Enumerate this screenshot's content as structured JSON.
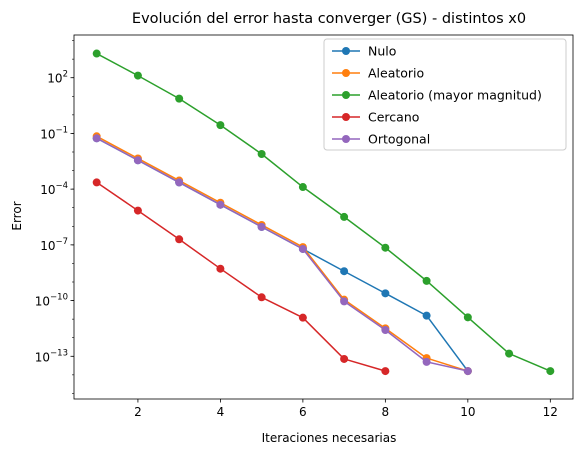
{
  "chart_data": {
    "type": "line",
    "title": "Evolución del error hasta converger (GS) - distintos x0",
    "xlabel": "Iteraciones necesarias",
    "ylabel": "Error",
    "xlim": [
      0.45,
      12.55
    ],
    "ylim_log10": [
      -15.3,
      4.3
    ],
    "yscale": "log",
    "grid": false,
    "legend_position": "top-right",
    "x_ticks": [
      2,
      4,
      6,
      8,
      10,
      12
    ],
    "y_ticks": [
      {
        "exp": 2,
        "label": "10",
        "sup": "2"
      },
      {
        "exp": -1,
        "label": "10",
        "sup": "−1"
      },
      {
        "exp": -4,
        "label": "10",
        "sup": "−4"
      },
      {
        "exp": -7,
        "label": "10",
        "sup": "−7"
      },
      {
        "exp": -10,
        "label": "10",
        "sup": "−10"
      },
      {
        "exp": -13,
        "label": "10",
        "sup": "−13"
      }
    ],
    "series": [
      {
        "name": "Nulo",
        "color": "#1f77b4",
        "x": [
          1,
          2,
          3,
          4,
          5,
          6,
          7,
          8,
          9,
          10
        ],
        "y": [
          0.055,
          0.0036,
          0.00023,
          1.45e-05,
          9.3e-07,
          6e-08,
          3.8e-09,
          2.45e-10,
          1.55e-11,
          1.6e-14
        ]
      },
      {
        "name": "Aleatorio",
        "color": "#ff7f0e",
        "x": [
          1,
          2,
          3,
          4,
          5,
          6,
          7,
          8,
          9,
          10
        ],
        "y": [
          0.07,
          0.0045,
          0.00029,
          1.85e-05,
          1.18e-06,
          7.6e-08,
          4.9e-09,
          3.1e-10,
          2e-11,
          1.6e-14
        ],
        "y_override": [
          0.07,
          0.0045,
          0.00029,
          1.85e-05,
          1.18e-06,
          7.6e-08,
          1.12e-10,
          3.2e-12,
          8e-14,
          1.6e-14
        ]
      },
      {
        "name": "Aleatorio (mayor magnitud)",
        "color": "#2ca02c",
        "x": [
          1,
          2,
          3,
          4,
          5,
          6,
          7,
          8,
          9,
          10,
          11,
          12
        ],
        "y": [
          2000,
          130,
          7.5,
          0.28,
          0.0078,
          0.00013,
          3.2e-06,
          7e-08,
          1.15e-09,
          4.2e-12,
          1.4e-13,
          1.6e-14
        ],
        "y_override": [
          2000,
          130,
          7.5,
          0.28,
          0.0078,
          0.00013,
          3.2e-06,
          7e-08,
          1.15e-09,
          1.25e-11,
          1.4e-13,
          1.6e-14
        ]
      },
      {
        "name": "Cercano",
        "color": "#d62728",
        "x": [
          1,
          2,
          3,
          4,
          5,
          6,
          7,
          8
        ],
        "y": [
          0.00023,
          7e-06,
          2e-07,
          5.2e-09,
          1.5e-10,
          1.2e-12,
          7.2e-14,
          1.6e-14
        ],
        "y_override": [
          0.00023,
          7e-06,
          2e-07,
          5.2e-09,
          1.5e-10,
          1.2e-11,
          7.2e-14,
          1.6e-14
        ]
      },
      {
        "name": "Ortogonal",
        "color": "#9467bd",
        "x": [
          1,
          2,
          3,
          4,
          5,
          6,
          7,
          8,
          9,
          10
        ],
        "y": [
          0.055,
          0.0036,
          0.00023,
          1.45e-05,
          9.3e-07,
          6e-08,
          7e-10,
          2e-12,
          5e-14,
          1.6e-14
        ],
        "y_override": [
          0.055,
          0.0036,
          0.00023,
          1.45e-05,
          9.3e-07,
          6e-08,
          9e-11,
          2.6e-12,
          5e-14,
          1.6e-14
        ]
      }
    ]
  }
}
